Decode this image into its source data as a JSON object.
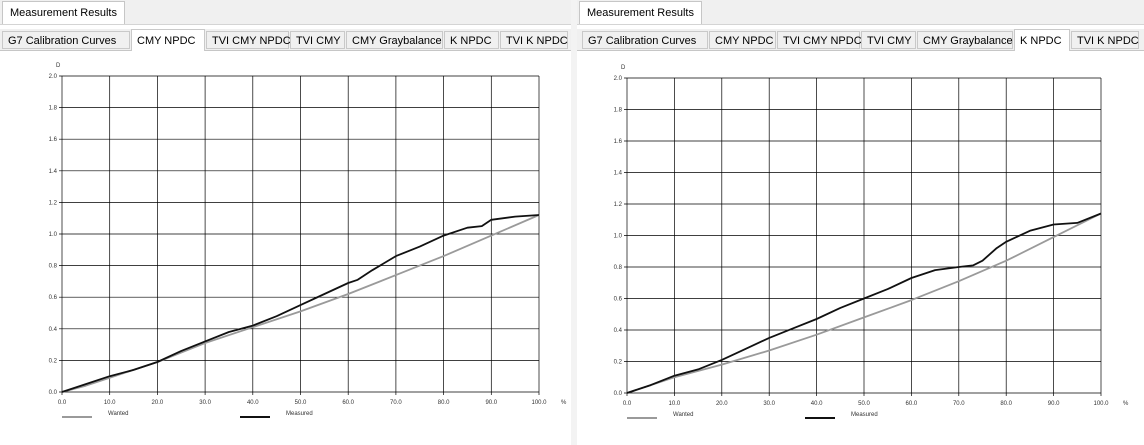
{
  "left": {
    "header": {
      "title": "Measurement Results"
    },
    "tabs": [
      {
        "label": "G7 Calibration Curves"
      },
      {
        "label": "CMY NPDC"
      },
      {
        "label": "TVI CMY NPDC"
      },
      {
        "label": "TVI CMY"
      },
      {
        "label": "CMY Graybalance"
      },
      {
        "label": "K NPDC"
      },
      {
        "label": "TVI K NPDC"
      }
    ],
    "active_tab": 1
  },
  "right": {
    "header": {
      "title": "Measurement Results"
    },
    "tabs": [
      {
        "label": "G7 Calibration Curves"
      },
      {
        "label": "CMY NPDC"
      },
      {
        "label": "TVI CMY NPDC"
      },
      {
        "label": "TVI CMY"
      },
      {
        "label": "CMY Graybalance"
      },
      {
        "label": "K NPDC"
      },
      {
        "label": "TVI K NPDC"
      }
    ],
    "active_tab": 5
  },
  "colors": {
    "wanted": "#9a9a9a",
    "measured": "#111111",
    "grid": "#000000"
  },
  "chart_data": [
    {
      "type": "line",
      "ylabel": "D",
      "xlabel": "%",
      "xlim": [
        0,
        100
      ],
      "ylim": [
        0,
        2.0
      ],
      "x_ticks": [
        "0.0",
        "10.0",
        "20.0",
        "30.0",
        "40.0",
        "50.0",
        "60.0",
        "70.0",
        "80.0",
        "90.0",
        "100.0"
      ],
      "y_ticks": [
        "0.0",
        "0.2",
        "0.4",
        "0.6",
        "0.8",
        "1.0",
        "1.2",
        "1.4",
        "1.6",
        "1.8",
        "2.0"
      ],
      "grid": true,
      "legend_position": "bottom",
      "series": [
        {
          "name": "Wanted",
          "x": [
            0,
            5,
            10,
            20,
            30,
            40,
            50,
            60,
            70,
            80,
            90,
            100
          ],
          "y": [
            0,
            0.04,
            0.09,
            0.19,
            0.31,
            0.41,
            0.51,
            0.62,
            0.74,
            0.86,
            0.99,
            1.12
          ]
        },
        {
          "name": "Measured",
          "x": [
            0,
            5,
            10,
            15,
            20,
            25,
            30,
            35,
            40,
            45,
            50,
            55,
            60,
            62,
            65,
            70,
            75,
            80,
            85,
            88,
            90,
            95,
            100
          ],
          "y": [
            0,
            0.05,
            0.1,
            0.14,
            0.19,
            0.26,
            0.32,
            0.38,
            0.42,
            0.48,
            0.55,
            0.62,
            0.69,
            0.71,
            0.77,
            0.86,
            0.92,
            0.99,
            1.04,
            1.05,
            1.09,
            1.11,
            1.12
          ]
        }
      ]
    },
    {
      "type": "line",
      "ylabel": "D",
      "xlabel": "%",
      "xlim": [
        0,
        100
      ],
      "ylim": [
        0,
        2.0
      ],
      "x_ticks": [
        "0.0",
        "10.0",
        "20.0",
        "30.0",
        "40.0",
        "50.0",
        "60.0",
        "70.0",
        "80.0",
        "90.0",
        "100.0"
      ],
      "y_ticks": [
        "0.0",
        "0.2",
        "0.4",
        "0.6",
        "0.8",
        "1.0",
        "1.2",
        "1.4",
        "1.6",
        "1.8",
        "2.0"
      ],
      "grid": true,
      "legend_position": "bottom",
      "series": [
        {
          "name": "Wanted",
          "x": [
            0,
            5,
            10,
            20,
            30,
            40,
            50,
            60,
            70,
            80,
            90,
            100
          ],
          "y": [
            0,
            0.05,
            0.1,
            0.18,
            0.27,
            0.37,
            0.48,
            0.59,
            0.71,
            0.84,
            0.99,
            1.14
          ]
        },
        {
          "name": "Measured",
          "x": [
            0,
            5,
            10,
            15,
            20,
            25,
            30,
            35,
            40,
            45,
            50,
            55,
            60,
            65,
            70,
            73,
            75,
            78,
            80,
            85,
            90,
            95,
            100
          ],
          "y": [
            0,
            0.05,
            0.11,
            0.15,
            0.21,
            0.28,
            0.35,
            0.41,
            0.47,
            0.54,
            0.6,
            0.66,
            0.73,
            0.78,
            0.8,
            0.81,
            0.84,
            0.92,
            0.96,
            1.03,
            1.07,
            1.08,
            1.14
          ]
        }
      ]
    }
  ]
}
